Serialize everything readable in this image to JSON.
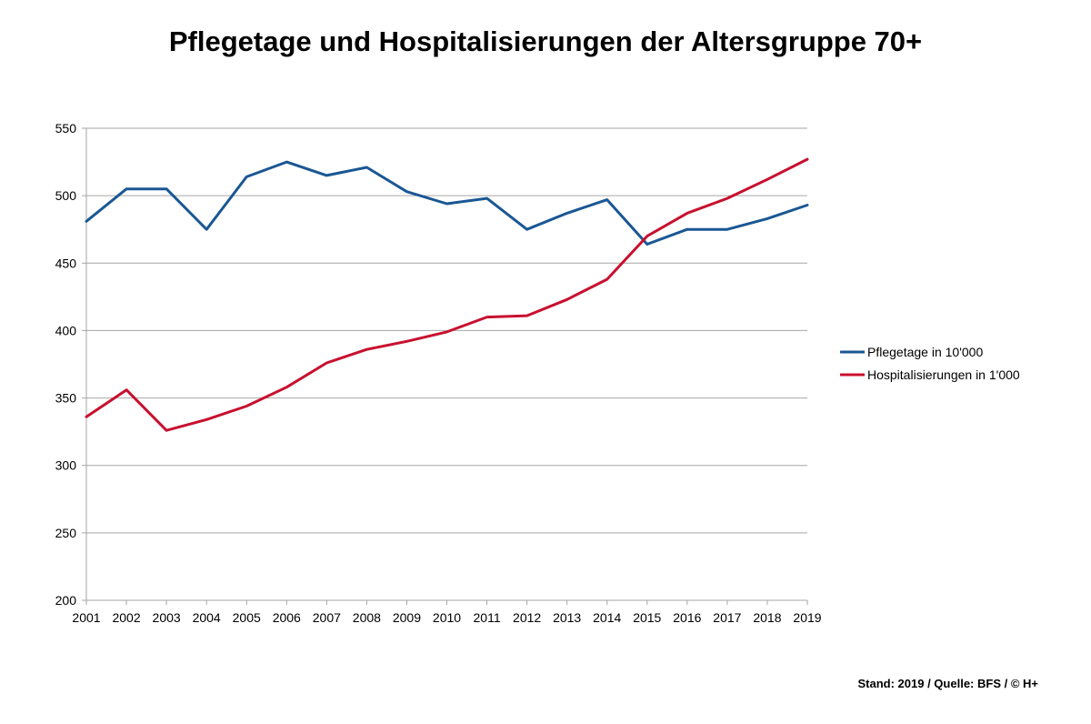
{
  "chart_data": {
    "type": "line",
    "title": "Pflegetage und Hospitalisierungen der Altersgruppe 70+",
    "xlabel": "",
    "ylabel": "",
    "categories": [
      "2001",
      "2002",
      "2003",
      "2004",
      "2005",
      "2006",
      "2007",
      "2008",
      "2009",
      "2010",
      "2011",
      "2012",
      "2013",
      "2014",
      "2015",
      "2016",
      "2017",
      "2018",
      "2019"
    ],
    "ylim": [
      200,
      550
    ],
    "yticks": [
      200,
      250,
      300,
      350,
      400,
      450,
      500,
      550
    ],
    "grid": true,
    "legend_position": "right",
    "series": [
      {
        "name": "Pflegetage in 10'000",
        "color": "#1a5793",
        "values": [
          481,
          505,
          505,
          475,
          514,
          525,
          515,
          521,
          503,
          494,
          498,
          475,
          487,
          497,
          464,
          475,
          475,
          483,
          493
        ]
      },
      {
        "name": "Hospitalisierungen in 1'000",
        "color": "#c8102e",
        "values": [
          336,
          356,
          326,
          334,
          344,
          358,
          376,
          386,
          392,
          399,
          410,
          411,
          423,
          438,
          470,
          487,
          498,
          512,
          527
        ]
      }
    ]
  },
  "footer": {
    "source": "Stand: 2019 / Quelle: BFS / © H+"
  }
}
